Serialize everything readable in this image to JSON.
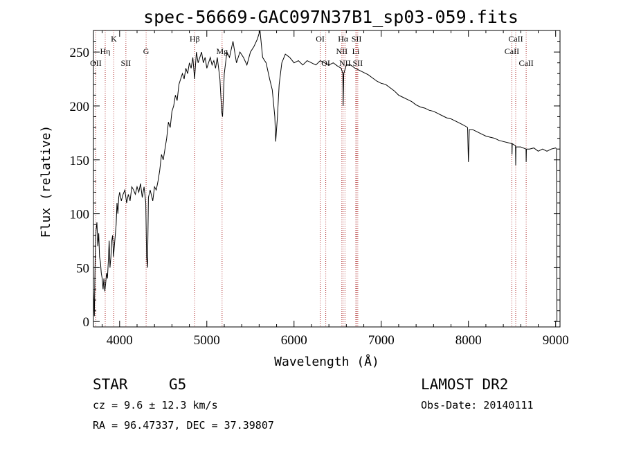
{
  "chart_data": {
    "type": "line",
    "title": "spec-56669-GAC097N37B1_sp03-059.fits",
    "xlabel": "Wavelength (Å)",
    "ylabel": "Flux (relative)",
    "xlim": [
      3700,
      9050
    ],
    "ylim": [
      -5,
      270
    ],
    "x_ticks": [
      4000,
      5000,
      6000,
      7000,
      8000,
      9000
    ],
    "y_ticks": [
      0,
      50,
      100,
      150,
      200,
      250
    ],
    "grid": false,
    "series": [
      {
        "points": [
          [
            3700,
            30
          ],
          [
            3710,
            5
          ],
          [
            3720,
            60
          ],
          [
            3730,
            85
          ],
          [
            3740,
            92
          ],
          [
            3750,
            70
          ],
          [
            3760,
            82
          ],
          [
            3770,
            60
          ],
          [
            3780,
            55
          ],
          [
            3790,
            45
          ],
          [
            3800,
            40
          ],
          [
            3810,
            30
          ],
          [
            3820,
            40
          ],
          [
            3830,
            28
          ],
          [
            3840,
            35
          ],
          [
            3850,
            45
          ],
          [
            3860,
            40
          ],
          [
            3870,
            55
          ],
          [
            3880,
            75
          ],
          [
            3890,
            50
          ],
          [
            3900,
            60
          ],
          [
            3910,
            75
          ],
          [
            3920,
            80
          ],
          [
            3930,
            60
          ],
          [
            3940,
            70
          ],
          [
            3950,
            80
          ],
          [
            3960,
            90
          ],
          [
            3970,
            110
          ],
          [
            3980,
            100
          ],
          [
            3990,
            115
          ],
          [
            4000,
            120
          ],
          [
            4020,
            112
          ],
          [
            4040,
            118
          ],
          [
            4060,
            122
          ],
          [
            4080,
            110
          ],
          [
            4100,
            118
          ],
          [
            4120,
            112
          ],
          [
            4140,
            125
          ],
          [
            4160,
            122
          ],
          [
            4180,
            118
          ],
          [
            4200,
            125
          ],
          [
            4220,
            120
          ],
          [
            4240,
            128
          ],
          [
            4260,
            115
          ],
          [
            4280,
            125
          ],
          [
            4300,
            110
          ],
          [
            4310,
            60
          ],
          [
            4320,
            50
          ],
          [
            4330,
            115
          ],
          [
            4350,
            122
          ],
          [
            4380,
            112
          ],
          [
            4400,
            125
          ],
          [
            4420,
            122
          ],
          [
            4440,
            130
          ],
          [
            4460,
            140
          ],
          [
            4480,
            155
          ],
          [
            4500,
            150
          ],
          [
            4520,
            160
          ],
          [
            4540,
            170
          ],
          [
            4560,
            185
          ],
          [
            4580,
            180
          ],
          [
            4600,
            195
          ],
          [
            4620,
            200
          ],
          [
            4640,
            210
          ],
          [
            4660,
            205
          ],
          [
            4680,
            220
          ],
          [
            4700,
            225
          ],
          [
            4720,
            230
          ],
          [
            4740,
            225
          ],
          [
            4760,
            235
          ],
          [
            4780,
            230
          ],
          [
            4800,
            240
          ],
          [
            4820,
            235
          ],
          [
            4840,
            245
          ],
          [
            4860,
            225
          ],
          [
            4880,
            250
          ],
          [
            4900,
            240
          ],
          [
            4920,
            245
          ],
          [
            4940,
            250
          ],
          [
            4960,
            240
          ],
          [
            4980,
            245
          ],
          [
            5000,
            235
          ],
          [
            5020,
            240
          ],
          [
            5040,
            245
          ],
          [
            5060,
            238
          ],
          [
            5080,
            242
          ],
          [
            5100,
            235
          ],
          [
            5120,
            245
          ],
          [
            5150,
            225
          ],
          [
            5170,
            195
          ],
          [
            5180,
            190
          ],
          [
            5200,
            230
          ],
          [
            5230,
            250
          ],
          [
            5260,
            245
          ],
          [
            5300,
            260
          ],
          [
            5340,
            240
          ],
          [
            5380,
            250
          ],
          [
            5420,
            245
          ],
          [
            5460,
            238
          ],
          [
            5500,
            250
          ],
          [
            5540,
            255
          ],
          [
            5580,
            262
          ],
          [
            5610,
            270
          ],
          [
            5640,
            245
          ],
          [
            5680,
            240
          ],
          [
            5720,
            225
          ],
          [
            5750,
            215
          ],
          [
            5780,
            190
          ],
          [
            5790,
            167
          ],
          [
            5810,
            190
          ],
          [
            5830,
            220
          ],
          [
            5860,
            240
          ],
          [
            5900,
            248
          ],
          [
            5950,
            245
          ],
          [
            6000,
            240
          ],
          [
            6050,
            242
          ],
          [
            6100,
            238
          ],
          [
            6150,
            242
          ],
          [
            6200,
            240
          ],
          [
            6250,
            238
          ],
          [
            6300,
            242
          ],
          [
            6350,
            240
          ],
          [
            6400,
            238
          ],
          [
            6450,
            240
          ],
          [
            6500,
            237
          ],
          [
            6540,
            235
          ],
          [
            6560,
            230
          ],
          [
            6563,
            200
          ],
          [
            6570,
            230
          ],
          [
            6600,
            238
          ],
          [
            6650,
            238
          ],
          [
            6700,
            235
          ],
          [
            6750,
            233
          ],
          [
            6800,
            231
          ],
          [
            6850,
            229
          ],
          [
            6900,
            226
          ],
          [
            6950,
            223
          ],
          [
            7000,
            221
          ],
          [
            7050,
            220
          ],
          [
            7100,
            217
          ],
          [
            7150,
            214
          ],
          [
            7200,
            210
          ],
          [
            7250,
            208
          ],
          [
            7300,
            206
          ],
          [
            7350,
            204
          ],
          [
            7400,
            201
          ],
          [
            7450,
            199
          ],
          [
            7500,
            198
          ],
          [
            7550,
            196
          ],
          [
            7600,
            195
          ],
          [
            7650,
            193
          ],
          [
            7700,
            191
          ],
          [
            7750,
            189
          ],
          [
            7800,
            188
          ],
          [
            7850,
            186
          ],
          [
            7900,
            184
          ],
          [
            7950,
            182
          ],
          [
            7990,
            180
          ],
          [
            8000,
            148
          ],
          [
            8010,
            178
          ],
          [
            8050,
            178
          ],
          [
            8100,
            176
          ],
          [
            8150,
            174
          ],
          [
            8200,
            172
          ],
          [
            8250,
            171
          ],
          [
            8300,
            170
          ],
          [
            8350,
            168
          ],
          [
            8400,
            167
          ],
          [
            8450,
            166
          ],
          [
            8498,
            165
          ],
          [
            8500,
            155
          ],
          [
            8502,
            165
          ],
          [
            8540,
            163
          ],
          [
            8542,
            145
          ],
          [
            8545,
            162
          ],
          [
            8600,
            162
          ],
          [
            8660,
            160
          ],
          [
            8662,
            148
          ],
          [
            8665,
            160
          ],
          [
            8700,
            160
          ],
          [
            8750,
            161
          ],
          [
            8800,
            158
          ],
          [
            8850,
            160
          ],
          [
            8900,
            158
          ],
          [
            8950,
            160
          ],
          [
            9000,
            161
          ],
          [
            9010,
            160
          ],
          [
            9015,
            0
          ]
        ]
      }
    ],
    "lines": [
      {
        "label": "OII",
        "x": 3727,
        "row": 3
      },
      {
        "label": "Hη",
        "x": 3835,
        "row": 2
      },
      {
        "label": "K",
        "x": 3934,
        "row": 1
      },
      {
        "label": "SII",
        "x": 4072,
        "row": 3
      },
      {
        "label": "G",
        "x": 4304,
        "row": 2
      },
      {
        "label": "Hβ",
        "x": 4861,
        "row": 1
      },
      {
        "label": "Mg",
        "x": 5175,
        "row": 2
      },
      {
        "label": "OI",
        "x": 6300,
        "row": 1
      },
      {
        "label": "OI",
        "x": 6364,
        "row": 3
      },
      {
        "label": "Hα",
        "x": 6563,
        "row": 1
      },
      {
        "label": "NII",
        "x": 6548,
        "row": 2
      },
      {
        "label": "NII",
        "x": 6584,
        "row": 3
      },
      {
        "label": "SII",
        "x": 6717,
        "row": 1
      },
      {
        "label": "Li",
        "x": 6708,
        "row": 2
      },
      {
        "label": "SII",
        "x": 6731,
        "row": 3
      },
      {
        "label": "CaII",
        "x": 8542,
        "row": 1
      },
      {
        "label": "CaII",
        "x": 8498,
        "row": 2
      },
      {
        "label": "CaII",
        "x": 8662,
        "row": 3
      }
    ]
  },
  "info": {
    "object_class": "STAR",
    "subclass": "G5",
    "survey": "LAMOST DR2",
    "cz": "cz = 9.6 ± 12.3 km/s",
    "obs_date": "Obs-Date: 20140111",
    "coords": "RA =  96.47337, DEC =  37.39807"
  },
  "colors": {
    "spectrum": "#000000",
    "line_markers": "#b03030"
  }
}
